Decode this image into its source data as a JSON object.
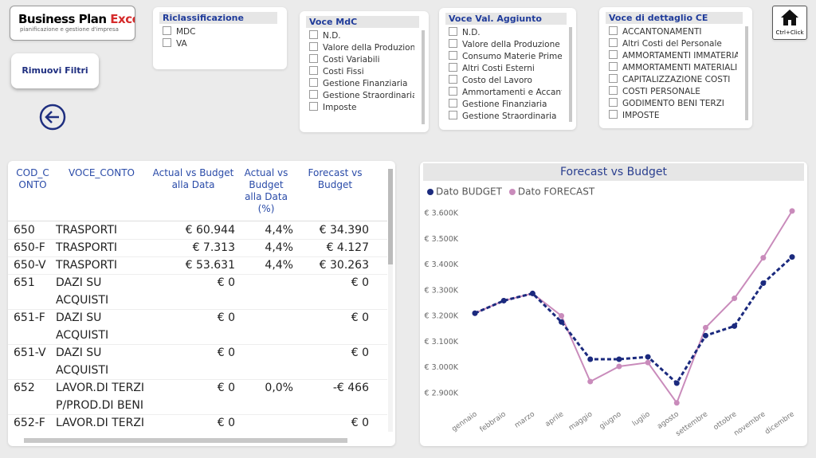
{
  "logo": {
    "brand": "Business Plan ",
    "brand_accent": "Excel",
    "tagline": "pianificazione e gestione d'impresa"
  },
  "button": "Rimuovi Filtri",
  "home_hint": "Ctrl+Click",
  "slicers": [
    {
      "title": "Riclassificazione",
      "items": [
        "MDC",
        "VA"
      ]
    },
    {
      "title": "Voce MdC",
      "items": [
        "N.D.",
        "Valore della Produzione",
        "Costi Variabili",
        "Costi Fissi",
        "Gestione Finanziaria",
        "Gestione Straordinaria",
        "Imposte"
      ]
    },
    {
      "title": "Voce Val. Aggiunto",
      "items": [
        "N.D.",
        "Valore della Produzione",
        "Consumo Materie Prime",
        "Altri Costi Esterni",
        "Costo del Lavoro",
        "Ammortamenti e Accanto...",
        "Gestione Finanziaria",
        "Gestione Straordinaria"
      ]
    },
    {
      "title": "Voce di dettaglio CE",
      "items": [
        "ACCANTONAMENTI",
        "Altri Costi del Personale",
        "AMMORTAMENTI IMMATERIALI",
        "AMMORTAMENTI MATERIALI",
        "CAPITALIZZAZIONE COSTI",
        "COSTI PERSONALE",
        "GODIMENTO BENI TERZI",
        "IMPOSTE"
      ]
    }
  ],
  "table": {
    "headers": [
      "COD_C ONTO",
      "VOCE_CONTO",
      "Actual vs Budget alla Data",
      "Actual vs Budget alla Data (%)",
      "Forecast vs Budget"
    ],
    "rows": [
      [
        "650",
        "TRASPORTI",
        "€ 60.944",
        "4,4%",
        "€ 34.390"
      ],
      [
        "650-F",
        "TRASPORTI",
        "€ 7.313",
        "4,4%",
        "€ 4.127"
      ],
      [
        "650-V",
        "TRASPORTI",
        "€ 53.631",
        "4,4%",
        "€ 30.263"
      ],
      [
        "651",
        "DAZI SU ACQUISTI",
        "€ 0",
        null,
        "€ 0"
      ],
      [
        "651-F",
        "DAZI SU ACQUISTI",
        "€ 0",
        null,
        "€ 0"
      ],
      [
        "651-V",
        "DAZI SU ACQUISTI",
        "€ 0",
        null,
        "€ 0"
      ],
      [
        "652",
        "LAVOR.DI TERZI P/PROD.DI BENI",
        "€ 0",
        "0,0%",
        "-€ 466"
      ],
      [
        "652-F",
        "LAVOR.DI TERZI",
        "€ 0",
        null,
        "€ 0"
      ]
    ]
  },
  "chart_data": {
    "type": "line",
    "title": "Forecast vs Budget",
    "legend": "top-left",
    "categories": [
      "gennaio",
      "febbraio",
      "marzo",
      "aprile",
      "maggio",
      "giugno",
      "luglio",
      "agosto",
      "settembre",
      "ottobre",
      "novembre",
      "dicembre"
    ],
    "series": [
      {
        "name": "Dato BUDGET",
        "color": "#1b2a7e",
        "dashed": true,
        "values": [
          3212,
          3261,
          3289,
          3178,
          3033,
          3033,
          3042,
          2940,
          3125,
          3162,
          3329,
          3431
        ]
      },
      {
        "name": "Dato FORECAST",
        "color": "#c98bbb",
        "dashed": false,
        "values": [
          3212,
          3261,
          3289,
          3202,
          2946,
          3005,
          3020,
          2863,
          3156,
          3270,
          3428,
          3610
        ]
      }
    ],
    "ylim": [
      2850,
      3650
    ],
    "yticks": [
      {
        "value": 2900,
        "label": "€ 2.900K"
      },
      {
        "value": 3000,
        "label": "€ 3.000K"
      },
      {
        "value": 3100,
        "label": "€ 3.100K"
      },
      {
        "value": 3200,
        "label": "€ 3.200K"
      },
      {
        "value": 3300,
        "label": "€ 3.300K"
      },
      {
        "value": 3400,
        "label": "€ 3.400K"
      },
      {
        "value": 3500,
        "label": "€ 3.500K"
      },
      {
        "value": 3600,
        "label": "€ 3.600K"
      }
    ],
    "grid": false
  }
}
